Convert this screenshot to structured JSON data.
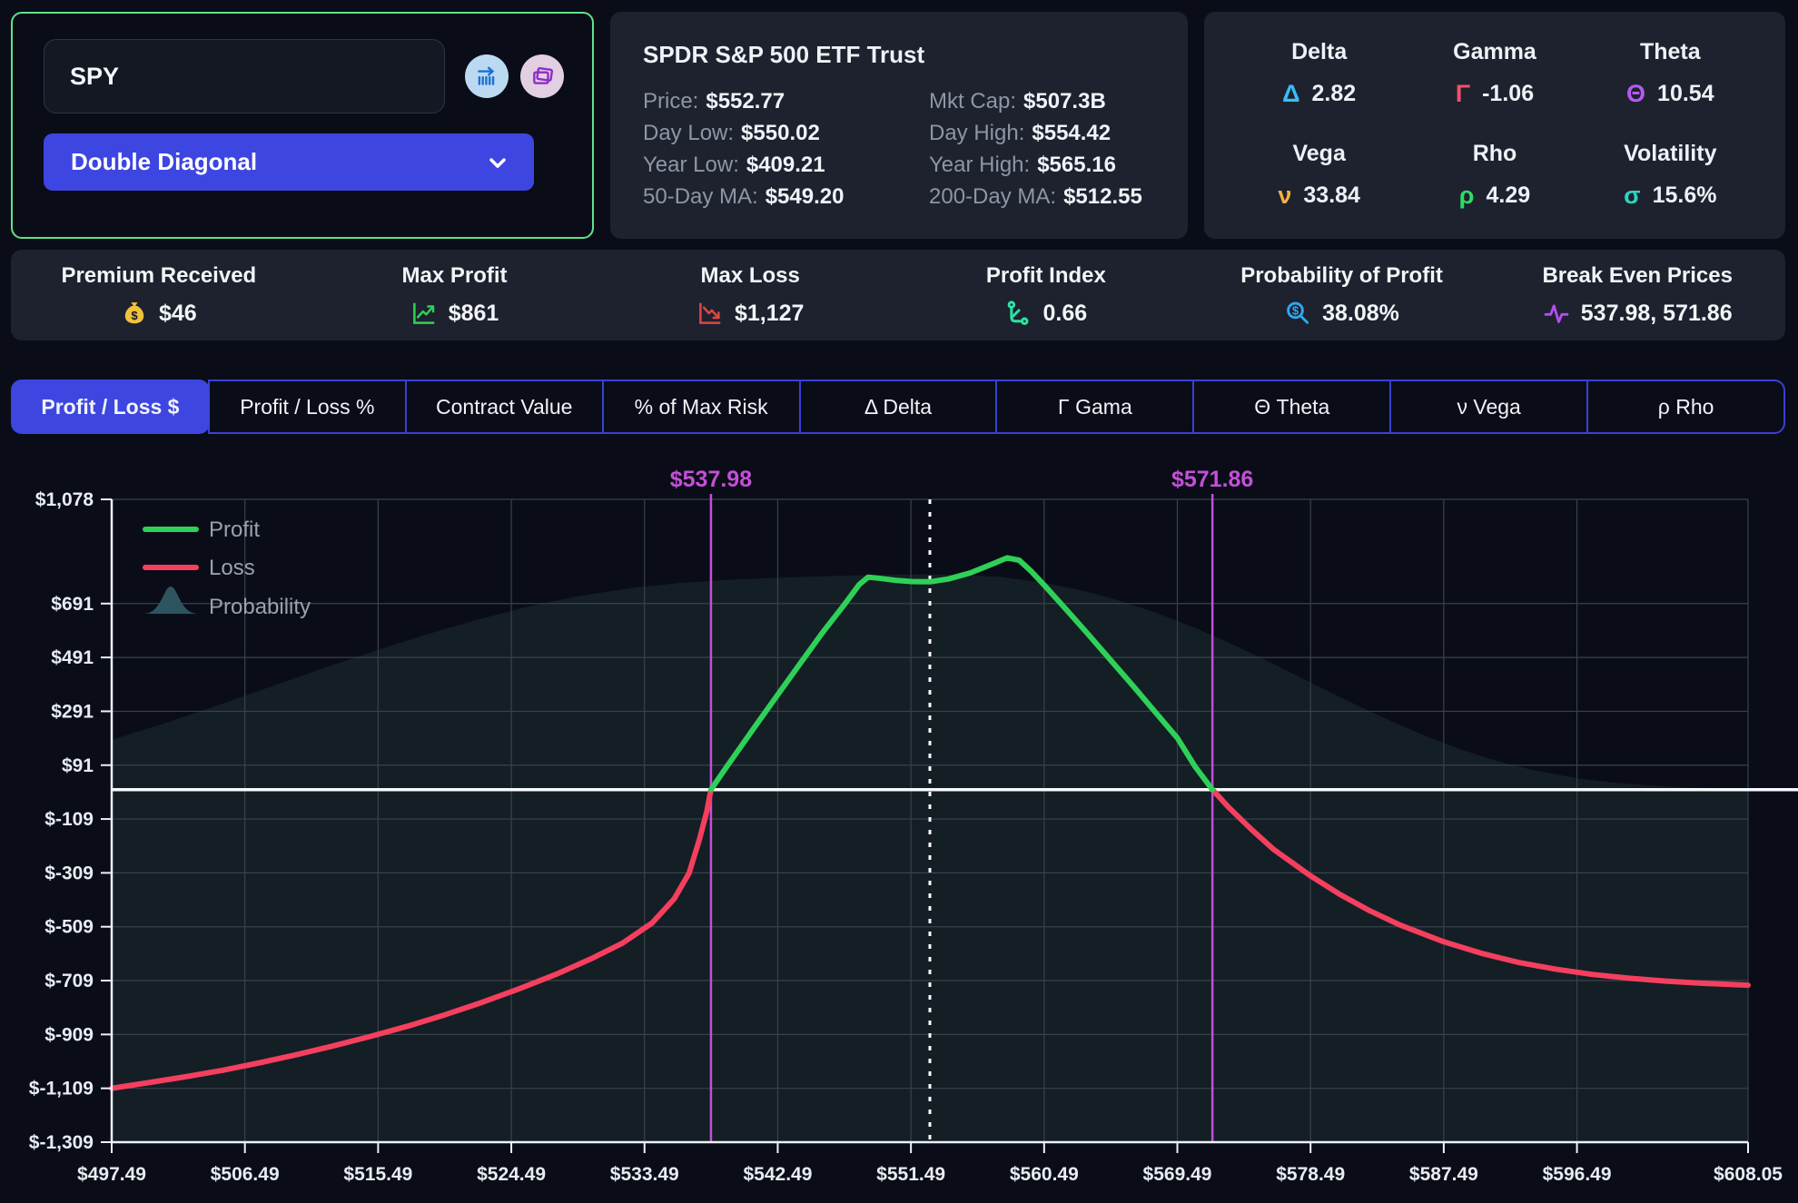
{
  "strategy_panel": {
    "ticker": "SPY",
    "strategy": "Double Diagonal",
    "accent_border": "#5fe289",
    "dropdown_color": "#3d46e0"
  },
  "stock_info": {
    "title": "SPDR S&P 500 ETF Trust",
    "pairs": [
      {
        "label": "Price:",
        "value": "$552.77"
      },
      {
        "label": "Mkt Cap:",
        "value": "$507.3B"
      },
      {
        "label": "Day Low:",
        "value": "$550.02"
      },
      {
        "label": "Day High:",
        "value": "$554.42"
      },
      {
        "label": "Year Low:",
        "value": "$409.21"
      },
      {
        "label": "Year High:",
        "value": "$565.16"
      },
      {
        "label": "50-Day MA:",
        "value": "$549.20"
      },
      {
        "label": "200-Day MA:",
        "value": "$512.55"
      }
    ]
  },
  "greeks": {
    "items": [
      {
        "name": "Delta",
        "symbol": "Δ",
        "value": "2.82",
        "color": "#38bdf8"
      },
      {
        "name": "Gamma",
        "symbol": "Γ",
        "value": "-1.06",
        "color": "#f4506a"
      },
      {
        "name": "Theta",
        "symbol": "Θ",
        "value": "10.54",
        "color": "#b35cf0"
      },
      {
        "name": "Vega",
        "symbol": "ν",
        "value": "33.84",
        "color": "#f5b041"
      },
      {
        "name": "Rho",
        "symbol": "ρ",
        "value": "4.29",
        "color": "#2fdb66"
      },
      {
        "name": "Volatility",
        "symbol": "σ",
        "value": "15.6%",
        "color": "#2dd4bf"
      }
    ]
  },
  "metrics": {
    "items": [
      {
        "label": "Premium Received",
        "value": "$46",
        "icon": "money-bag-icon"
      },
      {
        "label": "Max Profit",
        "value": "$861",
        "icon": "trend-up-icon"
      },
      {
        "label": "Max Loss",
        "value": "$1,127",
        "icon": "trend-down-icon"
      },
      {
        "label": "Profit Index",
        "value": "0.66",
        "icon": "route-icon"
      },
      {
        "label": "Probability of Profit",
        "value": "38.08%",
        "icon": "magnifier-dollar-icon"
      },
      {
        "label": "Break Even Prices",
        "value": "537.98, 571.86",
        "icon": "pulse-icon"
      }
    ]
  },
  "tabs": {
    "items": [
      {
        "label": "Profit / Loss $",
        "active": true
      },
      {
        "label": "Profit / Loss %",
        "active": false
      },
      {
        "label": "Contract Value",
        "active": false
      },
      {
        "label": "% of Max Risk",
        "active": false
      },
      {
        "label": "Δ Delta",
        "active": false
      },
      {
        "label": "Γ Gama",
        "active": false
      },
      {
        "label": "Θ Theta",
        "active": false
      },
      {
        "label": "ν Vega",
        "active": false
      },
      {
        "label": "ρ Rho",
        "active": false
      }
    ]
  },
  "chart_data": {
    "type": "line",
    "title": "Profit / Loss $ at expiration vs underlying price",
    "x_domain": [
      497.49,
      608.05
    ],
    "y_domain": [
      -1309,
      1078
    ],
    "x_ticks": [
      {
        "v": 497.49,
        "label": "$497.49"
      },
      {
        "v": 506.49,
        "label": "$506.49"
      },
      {
        "v": 515.49,
        "label": "$515.49"
      },
      {
        "v": 524.49,
        "label": "$524.49"
      },
      {
        "v": 533.49,
        "label": "$533.49"
      },
      {
        "v": 542.49,
        "label": "$542.49"
      },
      {
        "v": 551.49,
        "label": "$551.49"
      },
      {
        "v": 560.49,
        "label": "$560.49"
      },
      {
        "v": 569.49,
        "label": "$569.49"
      },
      {
        "v": 578.49,
        "label": "$578.49"
      },
      {
        "v": 587.49,
        "label": "$587.49"
      },
      {
        "v": 596.49,
        "label": "$596.49"
      },
      {
        "v": 608.05,
        "label": "$608.05"
      }
    ],
    "y_ticks": [
      {
        "v": 1078,
        "label": "$1,078"
      },
      {
        "v": 691,
        "label": "$691"
      },
      {
        "v": 491,
        "label": "$491"
      },
      {
        "v": 291,
        "label": "$291"
      },
      {
        "v": 91,
        "label": "$91"
      },
      {
        "v": -109,
        "label": "$-109"
      },
      {
        "v": -309,
        "label": "$-309"
      },
      {
        "v": -509,
        "label": "$-509"
      },
      {
        "v": -709,
        "label": "$-709"
      },
      {
        "v": -909,
        "label": "$-909"
      },
      {
        "v": -1109,
        "label": "$-1,109"
      },
      {
        "v": -1309,
        "label": "$-1,309"
      }
    ],
    "break_evens": [
      {
        "value": 537.98,
        "label": "$537.98"
      },
      {
        "value": 571.86,
        "label": "$571.86"
      }
    ],
    "current_price": {
      "value": 552.77
    },
    "max_profit": 861,
    "max_loss": -1127,
    "series": [
      {
        "name": "Loss (left wing)",
        "color": "#f43f5e",
        "points": [
          [
            497.49,
            -1109
          ],
          [
            500,
            -1088
          ],
          [
            502.5,
            -1066
          ],
          [
            505,
            -1042
          ],
          [
            507.5,
            -1014
          ],
          [
            510,
            -984
          ],
          [
            512.5,
            -951
          ],
          [
            515,
            -916
          ],
          [
            517.5,
            -878
          ],
          [
            520,
            -836
          ],
          [
            522.5,
            -790
          ],
          [
            525,
            -740
          ],
          [
            527.5,
            -686
          ],
          [
            530,
            -625
          ],
          [
            532,
            -570
          ],
          [
            534,
            -495
          ],
          [
            535.5,
            -405
          ],
          [
            536.5,
            -310
          ],
          [
            537.2,
            -185
          ],
          [
            537.7,
            -80
          ],
          [
            537.98,
            0
          ]
        ]
      },
      {
        "name": "Profit",
        "color": "#2ed157",
        "points": [
          [
            537.98,
            0
          ],
          [
            539,
            82
          ],
          [
            540,
            160
          ],
          [
            541,
            238
          ],
          [
            542.49,
            352
          ],
          [
            544,
            468
          ],
          [
            545.5,
            582
          ],
          [
            547,
            688
          ],
          [
            548,
            762
          ],
          [
            548.6,
            789
          ],
          [
            549.5,
            784
          ],
          [
            550.5,
            777
          ],
          [
            551.5,
            773
          ],
          [
            552.77,
            772
          ],
          [
            554,
            782
          ],
          [
            555.5,
            805
          ],
          [
            557,
            838
          ],
          [
            558,
            861
          ],
          [
            558.8,
            852
          ],
          [
            559.6,
            812
          ],
          [
            560.49,
            760
          ],
          [
            562,
            668
          ],
          [
            563.5,
            575
          ],
          [
            565,
            480
          ],
          [
            566.5,
            385
          ],
          [
            568,
            288
          ],
          [
            569.49,
            192
          ],
          [
            570.7,
            85
          ],
          [
            571.86,
            0
          ]
        ]
      },
      {
        "name": "Loss (right wing)",
        "color": "#f43f5e",
        "points": [
          [
            571.86,
            0
          ],
          [
            573,
            -68
          ],
          [
            574.5,
            -148
          ],
          [
            576,
            -222
          ],
          [
            578.49,
            -320
          ],
          [
            580.5,
            -390
          ],
          [
            582.5,
            -450
          ],
          [
            584.5,
            -502
          ],
          [
            587.49,
            -565
          ],
          [
            590,
            -607
          ],
          [
            592.5,
            -641
          ],
          [
            595,
            -666
          ],
          [
            597.5,
            -686
          ],
          [
            600,
            -700
          ],
          [
            602.5,
            -711
          ],
          [
            605,
            -719
          ],
          [
            608.05,
            -726
          ]
        ]
      },
      {
        "name": "Probability",
        "color": "rgba(125,216,192,0.09)",
        "points": [
          [
            497.49,
            185
          ],
          [
            501,
            245
          ],
          [
            504.5,
            310
          ],
          [
            508,
            378
          ],
          [
            511.5,
            445
          ],
          [
            515,
            510
          ],
          [
            518.5,
            572
          ],
          [
            522,
            628
          ],
          [
            525.5,
            678
          ],
          [
            529,
            718
          ],
          [
            532.5,
            748
          ],
          [
            536,
            768
          ],
          [
            539.5,
            780
          ],
          [
            543,
            788
          ],
          [
            546.5,
            794
          ],
          [
            550,
            798
          ],
          [
            552.5,
            800
          ],
          [
            555,
            797
          ],
          [
            557.5,
            790
          ],
          [
            560.49,
            768
          ],
          [
            563,
            740
          ],
          [
            565.5,
            703
          ],
          [
            568,
            658
          ],
          [
            570.5,
            605
          ],
          [
            573,
            545
          ],
          [
            575.5,
            480
          ],
          [
            578.49,
            398
          ],
          [
            581,
            330
          ],
          [
            583.5,
            265
          ],
          [
            586,
            205
          ],
          [
            588.5,
            152
          ],
          [
            591,
            108
          ],
          [
            593.5,
            73
          ],
          [
            596.49,
            42
          ],
          [
            599,
            26
          ],
          [
            601.5,
            15
          ],
          [
            604,
            8
          ],
          [
            608.05,
            3
          ]
        ]
      }
    ],
    "legend": [
      {
        "label": "Profit",
        "type": "line",
        "color": "#2ed157"
      },
      {
        "label": "Loss",
        "type": "line",
        "color": "#f43f5e"
      },
      {
        "label": "Probability",
        "type": "area",
        "color": "#2d5560"
      }
    ],
    "colors": {
      "grid": "#3a414b",
      "axis": "#eef1f6",
      "zero_line": "#f7f9fb",
      "break_even": "#c44fd9",
      "current": "#ffffff",
      "tick_text": "#e8ecf2",
      "legend_text": "#9aa2ae"
    },
    "grid": true,
    "legend_position": "top-left"
  }
}
